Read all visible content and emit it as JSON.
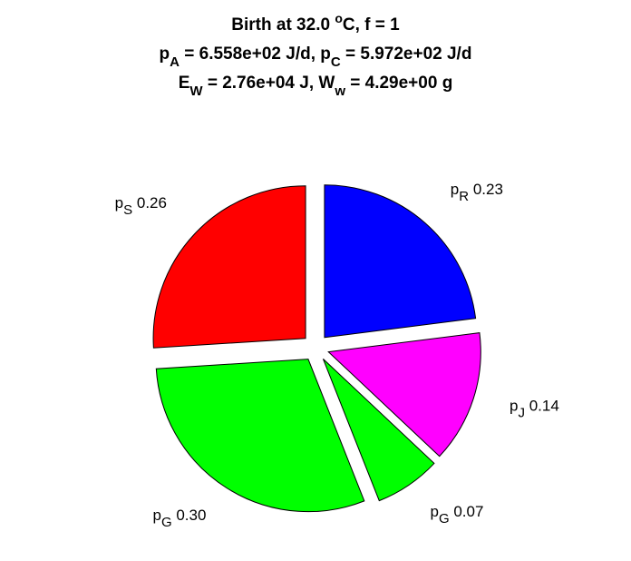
{
  "chart_data": {
    "type": "pie",
    "title_lines": [
      [
        {
          "text": "Birth at 32.0 "
        },
        {
          "text": "o",
          "shift": "super"
        },
        {
          "text": "C, f = 1"
        }
      ],
      [
        {
          "text": "p"
        },
        {
          "text": "A",
          "shift": "sub"
        },
        {
          "text": " = 6.558e+02 J/d, p"
        },
        {
          "text": "C",
          "shift": "sub"
        },
        {
          "text": " = 5.972e+02 J/d"
        }
      ],
      [
        {
          "text": "E"
        },
        {
          "text": "W",
          "shift": "sub"
        },
        {
          "text": " = 2.76e+04 J, W"
        },
        {
          "text": "w",
          "shift": "sub"
        },
        {
          "text": " = 4.29e+00 g"
        }
      ]
    ],
    "categories": [
      {
        "text": "p",
        "sub": "S"
      },
      {
        "text": "p",
        "sub": "G"
      },
      {
        "text": "p",
        "sub": "G"
      },
      {
        "text": "p",
        "sub": "J"
      },
      {
        "text": "p",
        "sub": "R"
      }
    ],
    "values": [
      0.26,
      0.3,
      0.07,
      0.14,
      0.23
    ],
    "value_labels": [
      "0.26",
      "0.30",
      "0.07",
      "0.14",
      "0.23"
    ],
    "colors": [
      "#ff0000",
      "#00ff00",
      "#00ff00",
      "#ff00ff",
      "#0000ff"
    ],
    "start_angle": 90,
    "direction": "counterclockwise",
    "exploded": true
  }
}
